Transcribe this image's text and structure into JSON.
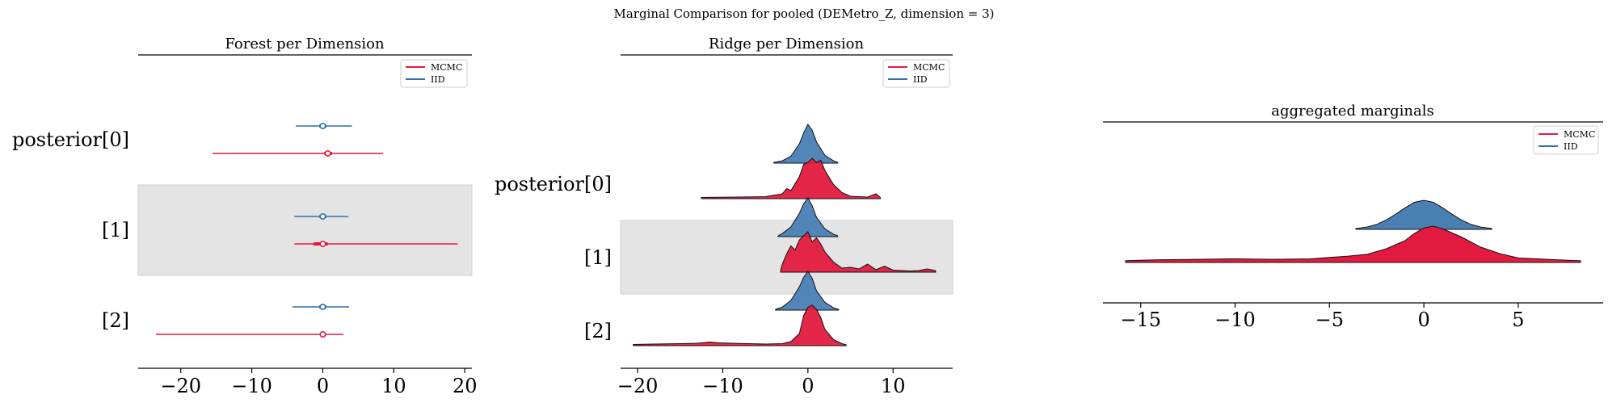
{
  "suptitle": "Marginal Comparison for pooled (DEMetro_Z, dimension = 3)",
  "colors": {
    "mcmc": "#e31a3f",
    "iid": "#2d6fb1",
    "iid_fill": "#4a7fb4",
    "band": "#e4e4e4"
  },
  "chart_data": [
    {
      "type": "forest",
      "title": "Forest per Dimension",
      "xlabel": "",
      "ylabel": "",
      "xlim": [
        -26,
        21
      ],
      "xticks": [
        -20,
        -10,
        0,
        10,
        20
      ],
      "xtick_labels": [
        "−20",
        "−10",
        "0",
        "10",
        "20"
      ],
      "categories": [
        "posterior[0]",
        "[1]",
        "[2]"
      ],
      "shaded_rows": [
        1
      ],
      "legend": {
        "placement": "top-right",
        "entries": [
          "MCMC",
          "IID"
        ]
      },
      "series": [
        {
          "name": "MCMC",
          "color": "mcmc",
          "intervals": [
            {
              "low": -15.5,
              "q1": 0.2,
              "q3": 1.3,
              "high": 8.5,
              "mean": 0.7
            },
            {
              "low": -4.0,
              "q1": -1.3,
              "q3": 0.7,
              "high": 19.0,
              "mean": 0.0
            },
            {
              "low": -23.5,
              "q1": -0.4,
              "q3": 0.4,
              "high": 2.9,
              "mean": 0.0
            }
          ]
        },
        {
          "name": "IID",
          "color": "iid",
          "intervals": [
            {
              "low": -3.8,
              "q1": -0.5,
              "q3": 0.5,
              "high": 4.1,
              "mean": 0.0
            },
            {
              "low": -4.0,
              "q1": -0.5,
              "q3": 0.5,
              "high": 3.6,
              "mean": 0.0
            },
            {
              "low": -4.3,
              "q1": -0.5,
              "q3": 0.5,
              "high": 3.7,
              "mean": 0.0
            }
          ]
        }
      ]
    },
    {
      "type": "ridge",
      "title": "Ridge per Dimension",
      "xlabel": "",
      "ylabel": "",
      "xlim": [
        -22,
        17
      ],
      "xticks": [
        -20,
        -10,
        0,
        10
      ],
      "xtick_labels": [
        "−20",
        "−10",
        "0",
        "10"
      ],
      "categories": [
        "posterior[0]",
        "[1]",
        "[2]"
      ],
      "shaded_rows": [
        1
      ],
      "legend": {
        "placement": "top-right",
        "entries": [
          "MCMC",
          "IID"
        ]
      },
      "series": [
        {
          "name": "IID",
          "color": "iid",
          "ridges": [
            {
              "x": [
                -4,
                -3,
                -2,
                -1,
                -0.5,
                0,
                0.5,
                1,
                2,
                3,
                3.5
              ],
              "y": [
                0.02,
                0.06,
                0.18,
                0.5,
                0.78,
                1.0,
                0.85,
                0.55,
                0.2,
                0.06,
                0.02
              ]
            },
            {
              "x": [
                -3.5,
                -3,
                -2,
                -1,
                -0.5,
                0,
                0.5,
                1,
                2,
                3,
                3.5
              ],
              "y": [
                0.02,
                0.08,
                0.25,
                0.6,
                0.85,
                1.0,
                0.8,
                0.5,
                0.2,
                0.06,
                0.02
              ]
            },
            {
              "x": [
                -3.8,
                -3,
                -2,
                -1,
                -0.5,
                0,
                0.5,
                1,
                2,
                3,
                3.6
              ],
              "y": [
                0.02,
                0.08,
                0.25,
                0.6,
                0.85,
                1.0,
                0.82,
                0.5,
                0.2,
                0.06,
                0.02
              ]
            }
          ]
        },
        {
          "name": "MCMC",
          "color": "mcmc",
          "ridges": [
            {
              "x": [
                -12.5,
                -8,
                -5,
                -3,
                -2.5,
                -2,
                -1,
                -0.5,
                0,
                0.5,
                1,
                1.5,
                2,
                3,
                4,
                5,
                7,
                8,
                8.5
              ],
              "y": [
                0.03,
                0.04,
                0.05,
                0.12,
                0.25,
                0.2,
                0.55,
                0.85,
                0.9,
                1.0,
                0.9,
                0.95,
                0.7,
                0.35,
                0.15,
                0.06,
                0.04,
                0.12,
                0.03
              ]
            },
            {
              "x": [
                -3.2,
                -3,
                -2.5,
                -2,
                -1.5,
                -1,
                -0.5,
                0,
                0.5,
                1,
                1.5,
                2,
                3,
                4,
                5,
                6,
                7,
                8,
                9,
                10,
                11,
                12,
                13,
                14,
                15
              ],
              "y": [
                0.05,
                0.2,
                0.45,
                0.65,
                0.55,
                0.8,
                0.9,
                1.0,
                0.75,
                0.85,
                0.7,
                0.5,
                0.25,
                0.1,
                0.12,
                0.08,
                0.2,
                0.06,
                0.15,
                0.05,
                0.04,
                0.03,
                0.04,
                0.08,
                0.04
              ]
            },
            {
              "x": [
                -20.5,
                -18,
                -15,
                -13,
                -11.5,
                -10.5,
                -9,
                -7,
                -5,
                -3,
                -2,
                -1,
                -0.5,
                0,
                0.5,
                1,
                1.5,
                2,
                3,
                4,
                4.5
              ],
              "y": [
                0.03,
                0.04,
                0.05,
                0.06,
                0.09,
                0.07,
                0.06,
                0.05,
                0.04,
                0.05,
                0.1,
                0.3,
                0.75,
                0.95,
                1.0,
                0.9,
                0.7,
                0.4,
                0.15,
                0.05,
                0.02
              ]
            }
          ]
        }
      ]
    },
    {
      "type": "area",
      "title": "aggregated marginals",
      "xlabel": "",
      "ylabel": "",
      "xlim": [
        -17,
        9.5
      ],
      "xticks": [
        -15,
        -10,
        -5,
        0,
        5
      ],
      "xtick_labels": [
        "−15",
        "−10",
        "−5",
        "0",
        "5"
      ],
      "legend": {
        "placement": "top-right",
        "entries": [
          "MCMC",
          "IID"
        ]
      },
      "series": [
        {
          "name": "IID",
          "color": "iid",
          "x": [
            -3.6,
            -3,
            -2.5,
            -2,
            -1.5,
            -1,
            -0.5,
            0,
            0.5,
            1,
            1.5,
            2,
            2.5,
            3,
            3.6
          ],
          "y": [
            0.03,
            0.08,
            0.17,
            0.32,
            0.52,
            0.74,
            0.93,
            1.0,
            0.93,
            0.74,
            0.52,
            0.32,
            0.17,
            0.08,
            0.03
          ]
        },
        {
          "name": "MCMC",
          "color": "mcmc",
          "x": [
            -15.8,
            -14,
            -12,
            -10,
            -8,
            -6,
            -4,
            -3,
            -2,
            -1,
            -0.5,
            0,
            0.5,
            1,
            2,
            3,
            4,
            5,
            6,
            7,
            8.3
          ],
          "y": [
            0.02,
            0.03,
            0.035,
            0.04,
            0.035,
            0.04,
            0.07,
            0.09,
            0.15,
            0.24,
            0.32,
            0.38,
            0.4,
            0.37,
            0.28,
            0.17,
            0.1,
            0.05,
            0.04,
            0.03,
            0.02
          ]
        }
      ]
    }
  ]
}
